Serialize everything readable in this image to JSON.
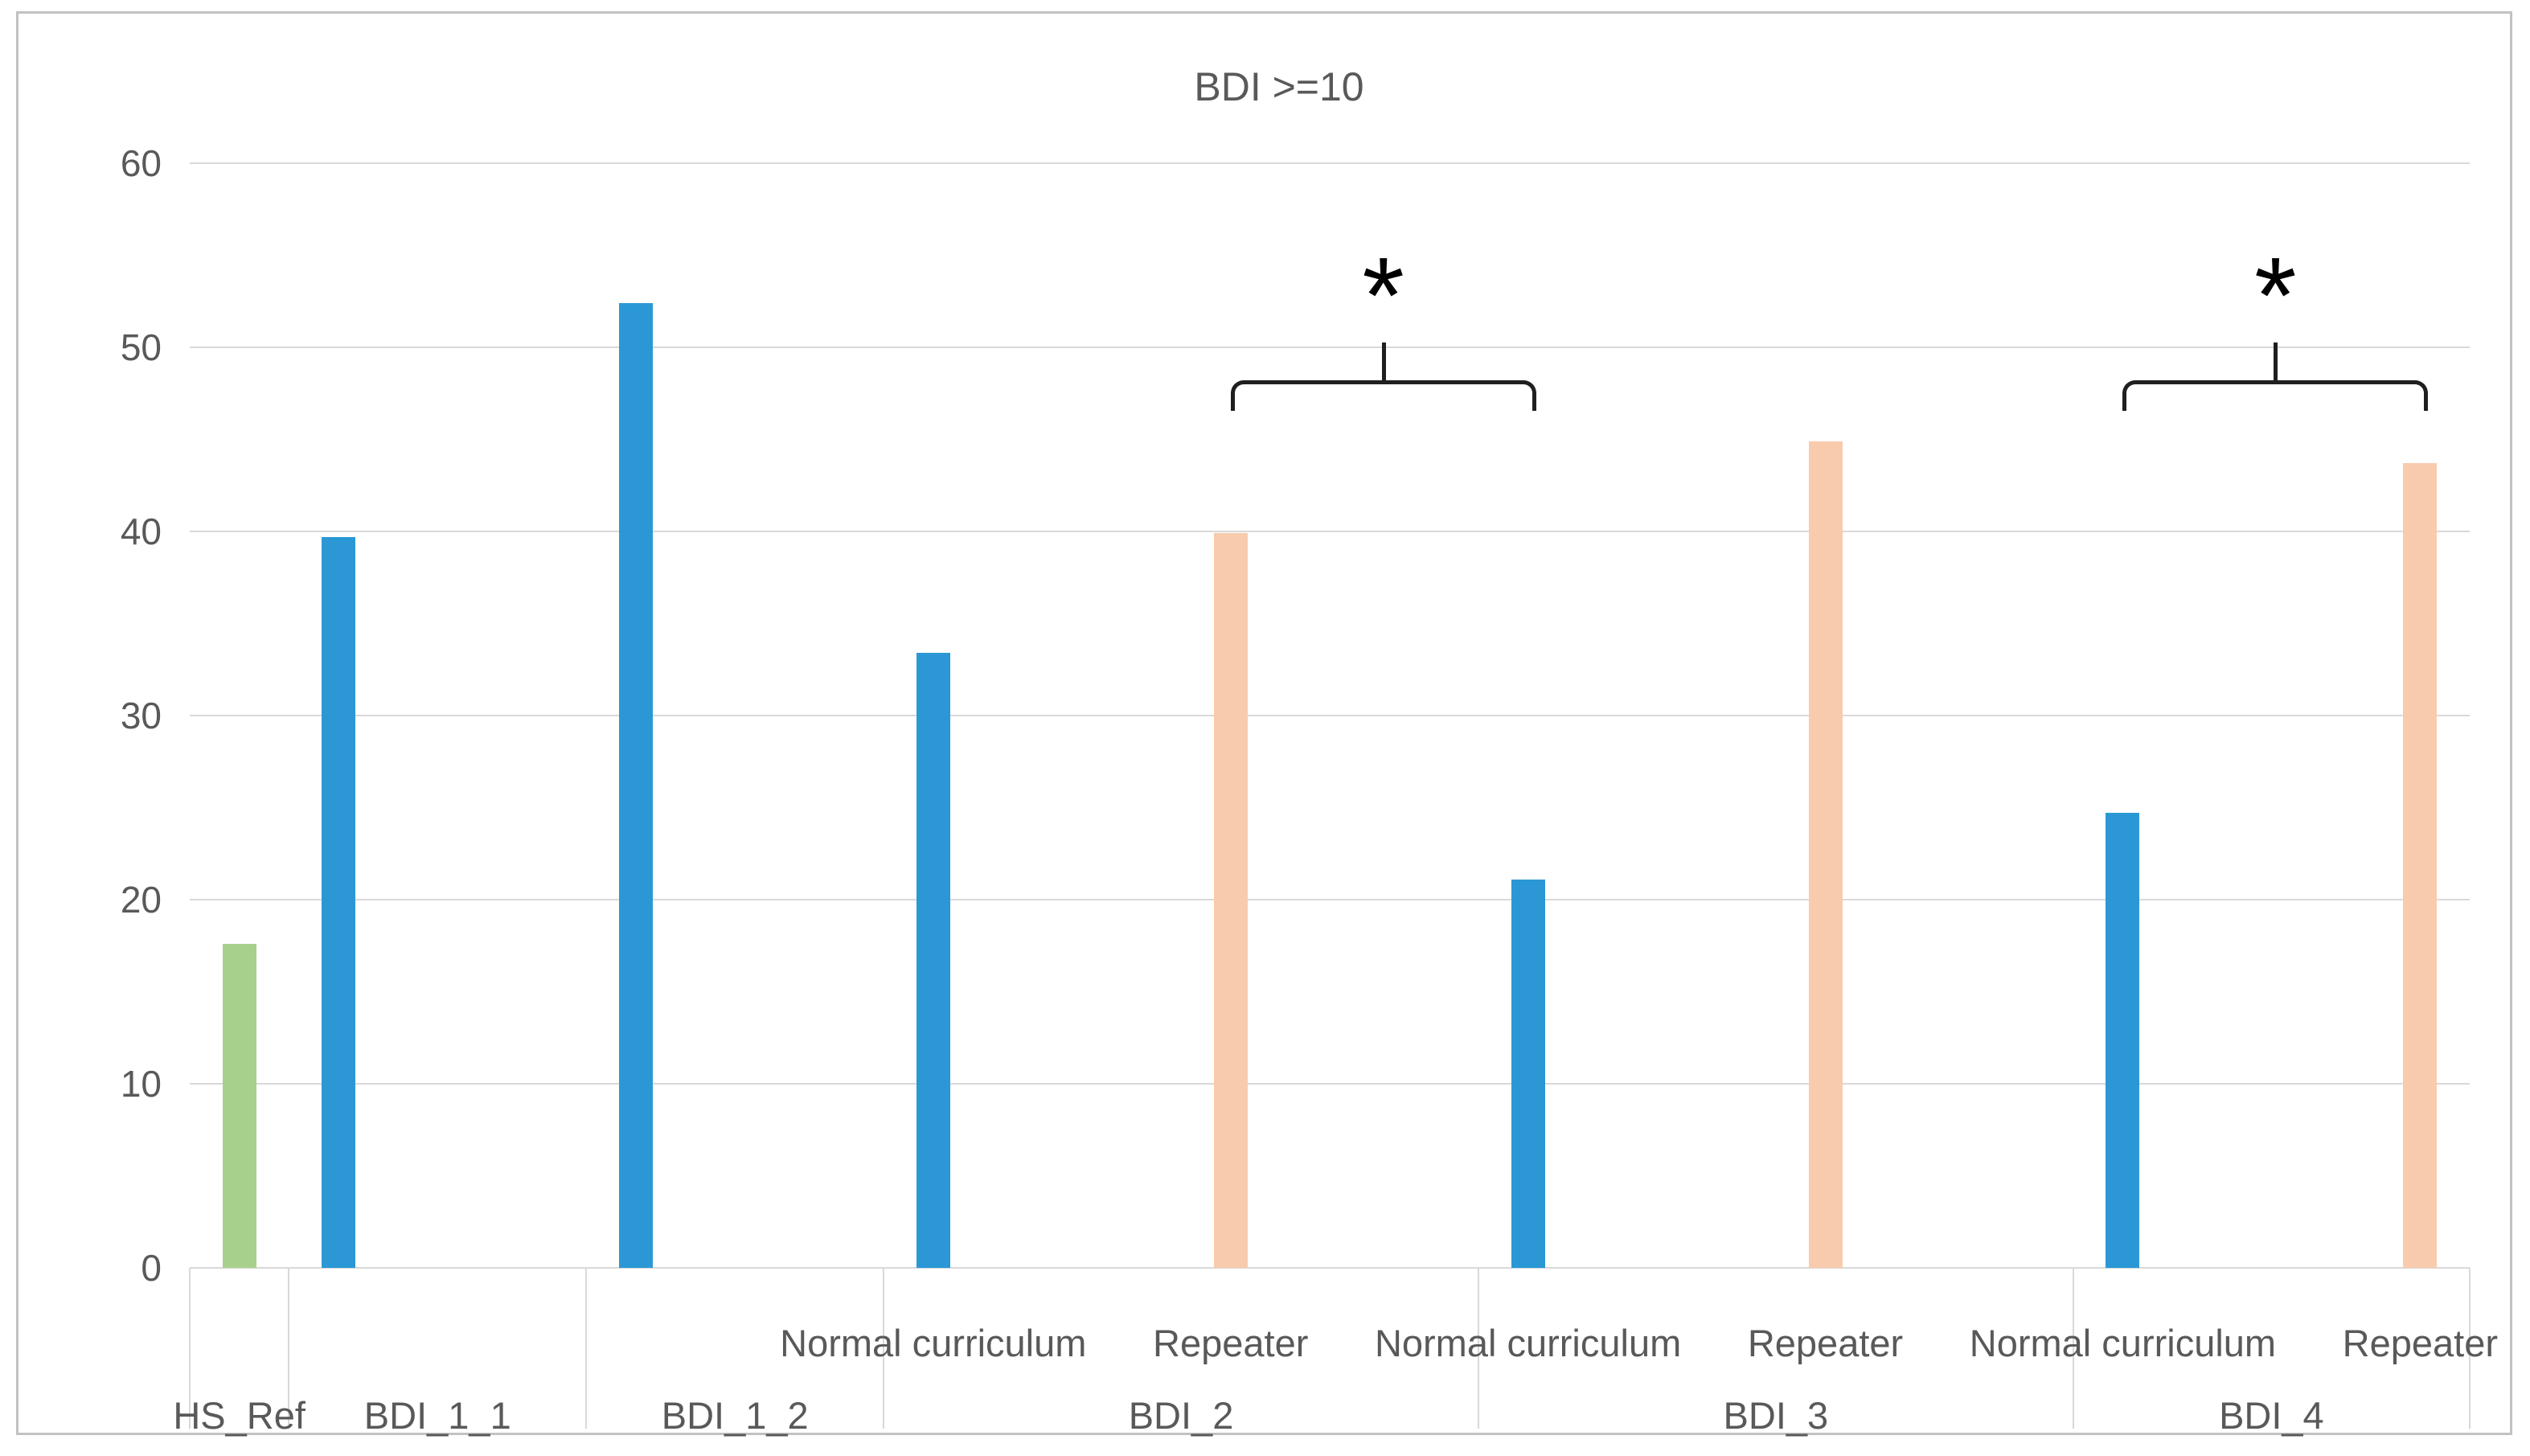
{
  "title": "BDI >=10",
  "colors": {
    "blue": "#2B98D5",
    "green": "#A8D08D",
    "orange": "#F8CBAD",
    "gridline": "#D9D9D9",
    "axis_text": "#595959",
    "bracket": "#1F1F1F",
    "frame_border": "#C2C2C2"
  },
  "chart_data": {
    "type": "bar",
    "title": "BDI >=10",
    "ylabel": "",
    "xlabel": "",
    "ylim": [
      0,
      60
    ],
    "yticks": [
      0,
      10,
      20,
      30,
      40,
      50,
      60
    ],
    "grid": true,
    "legend": "none",
    "category_slots": 23,
    "groups": [
      {
        "label": "HS_Ref",
        "span": [
          0,
          1
        ],
        "bars": [
          {
            "slot": 0,
            "label": "",
            "value": 17.6,
            "color": "#A8D08D"
          }
        ]
      },
      {
        "label": "BDI_1_1",
        "span": [
          1,
          4
        ],
        "bars": [
          {
            "slot": 1,
            "label": "",
            "value": 39.7,
            "color": "#2B98D5"
          }
        ]
      },
      {
        "label": "BDI_1_2",
        "span": [
          4,
          7
        ],
        "bars": [
          {
            "slot": 4,
            "label": "",
            "value": 52.4,
            "color": "#2B98D5"
          }
        ]
      },
      {
        "label": "BDI_2",
        "span": [
          7,
          13
        ],
        "bars": [
          {
            "slot": 7,
            "label": "Normal curriculum",
            "value": 33.4,
            "color": "#2B98D5"
          },
          {
            "slot": 10,
            "label": "Repeater",
            "value": 39.9,
            "color": "#F8CBAD"
          }
        ]
      },
      {
        "label": "BDI_3",
        "span": [
          13,
          19
        ],
        "bars": [
          {
            "slot": 13,
            "label": "Normal curriculum",
            "value": 21.1,
            "color": "#2B98D5"
          },
          {
            "slot": 16,
            "label": "Repeater",
            "value": 44.9,
            "color": "#F8CBAD"
          }
        ]
      },
      {
        "label": "BDI_4",
        "span": [
          19,
          23
        ],
        "bars": [
          {
            "slot": 19,
            "label": "Normal curriculum",
            "value": 24.7,
            "color": "#2B98D5"
          },
          {
            "slot": 22,
            "label": "Repeater",
            "value": 43.7,
            "color": "#F8CBAD"
          }
        ]
      }
    ],
    "annotations": [
      {
        "symbol": "*",
        "from_slot": 10,
        "to_slot": 13,
        "bar_value": 48.2
      },
      {
        "symbol": "*",
        "from_slot": 19,
        "to_slot": 22,
        "bar_value": 48.2
      }
    ]
  }
}
